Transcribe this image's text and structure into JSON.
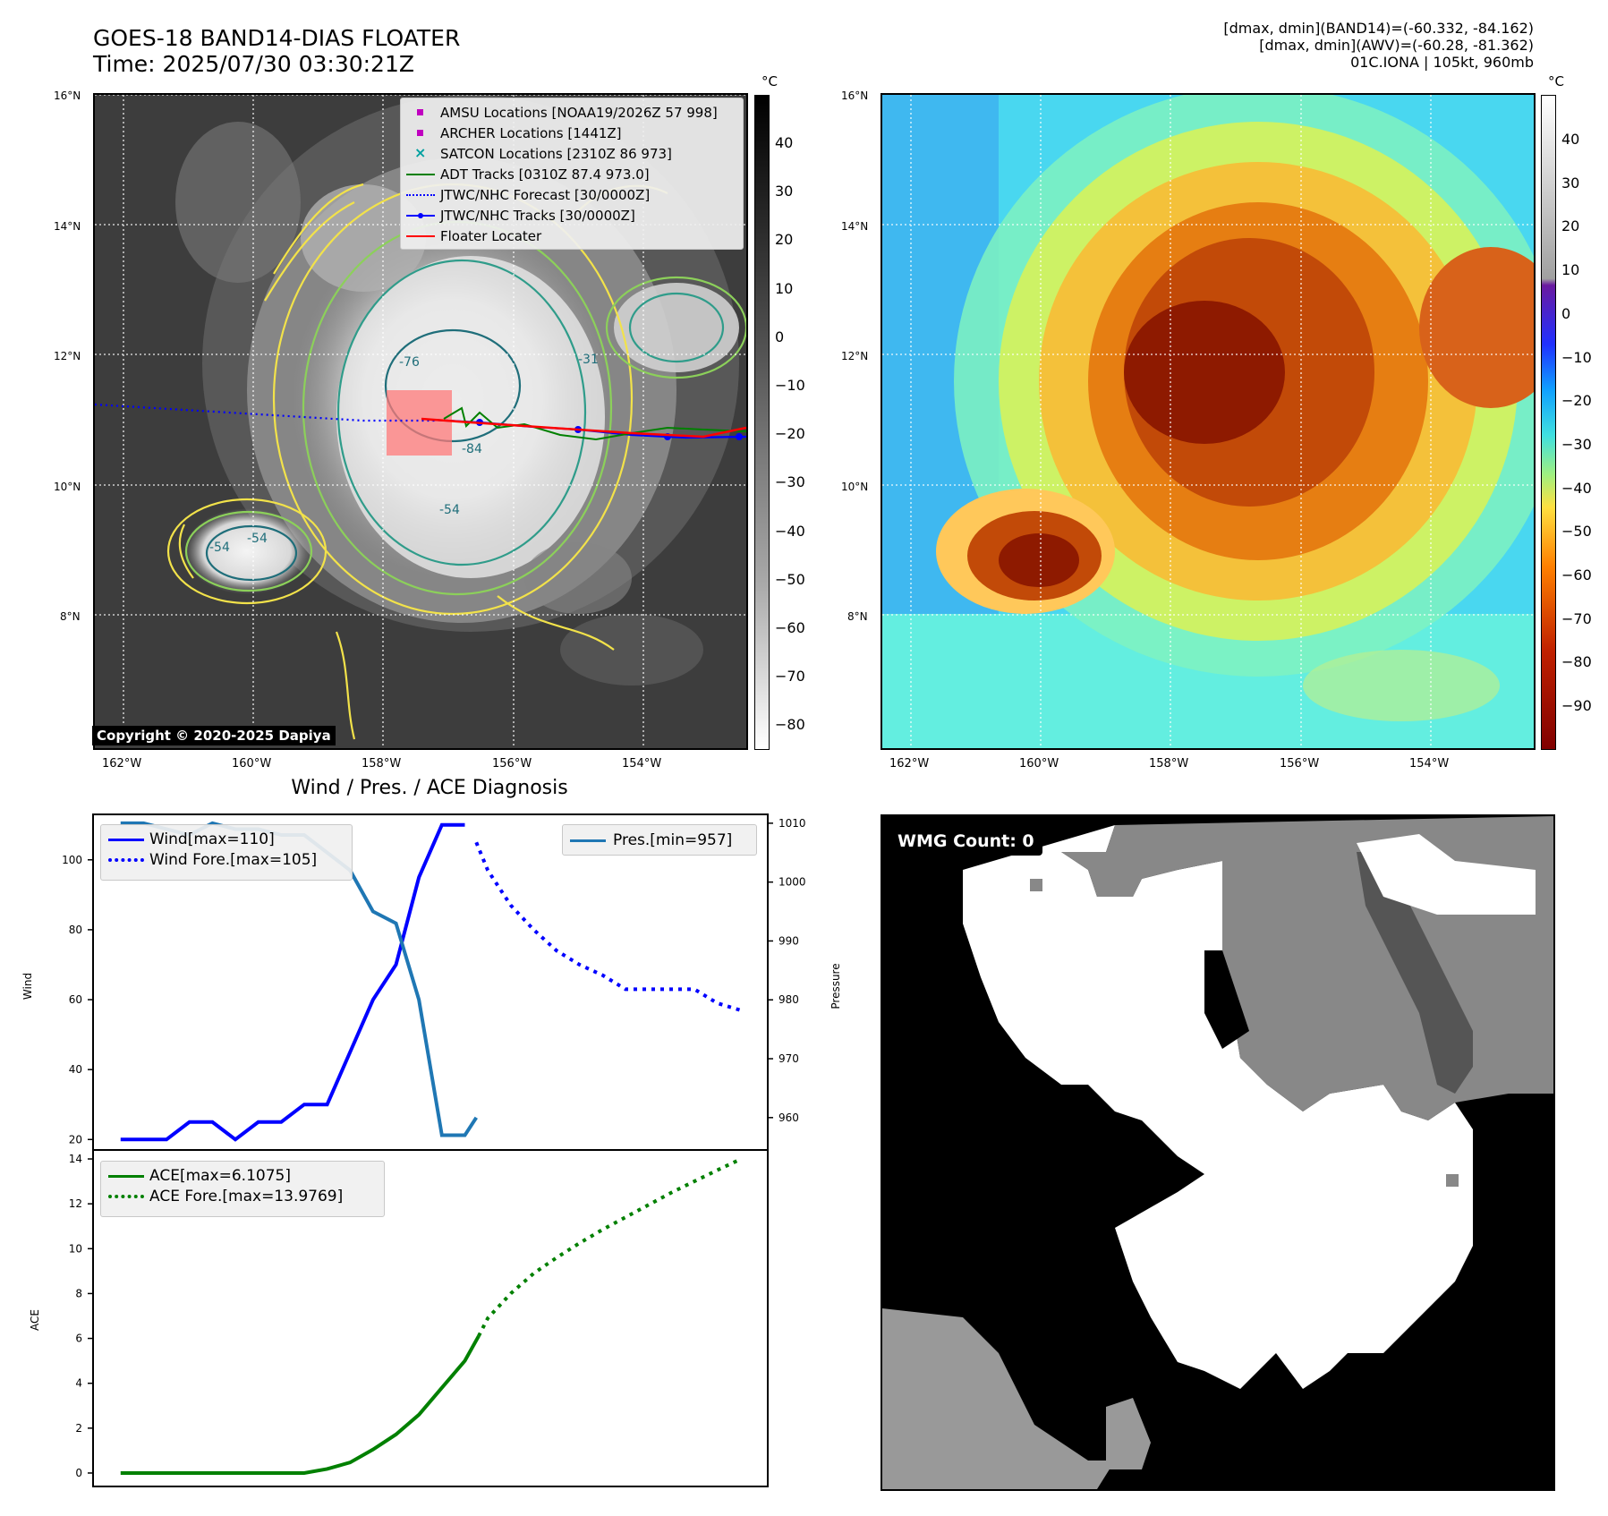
{
  "header": {
    "title_line1": "GOES-18 BAND14-DIAS FLOATER",
    "title_line2": "Time: 2025/07/30 03:30:21Z",
    "info_line1": "[dmax, dmin](BAND14)=(-60.332, -84.162)",
    "info_line2": "[dmax, dmin](AWV)=(-60.28, -81.362)",
    "info_line3": "01C.IONA | 105kt, 960mb"
  },
  "map": {
    "lat_labels": [
      "16°N",
      "14°N",
      "12°N",
      "10°N",
      "8°N"
    ],
    "lon_labels": [
      "162°W",
      "160°W",
      "158°W",
      "156°W",
      "154°W"
    ],
    "copyright": "Copyright © 2020-2025 Dapiya",
    "contour_labels": [
      "-54",
      "-54",
      "-54",
      "-31",
      "-76",
      "-84"
    ],
    "legend": [
      {
        "label": "AMSU Locations [NOAA19/2026Z 57 998]",
        "color": "#c000c0",
        "kind": "square"
      },
      {
        "label": "ARCHER Locations [1441Z]",
        "color": "#c000c0",
        "kind": "square"
      },
      {
        "label": "SATCON Locations [2310Z 86 973]",
        "color": "#00a0a0",
        "kind": "cross"
      },
      {
        "label": "ADT Tracks [0310Z 87.4 973.0]",
        "color": "#008000",
        "kind": "line"
      },
      {
        "label": "JTWC/NHC Forecast [30/0000Z]",
        "color": "#0000ff",
        "kind": "dotted"
      },
      {
        "label": "JTWC/NHC Tracks [30/0000Z]",
        "color": "#0000ff",
        "kind": "line-dot"
      },
      {
        "label": "Floater Locater",
        "color": "#ff0000",
        "kind": "line"
      }
    ]
  },
  "colorbars": {
    "unit": "°C",
    "gray_ticks": [
      "40",
      "30",
      "20",
      "10",
      "0",
      "−10",
      "−20",
      "−30",
      "−40",
      "−50",
      "−60",
      "−70",
      "−80"
    ],
    "color_ticks": [
      "40",
      "30",
      "20",
      "10",
      "0",
      "−10",
      "−20",
      "−30",
      "−40",
      "−50",
      "−60",
      "−70",
      "−80",
      "−90"
    ]
  },
  "wmg": {
    "badge": "WMG Count: 0"
  },
  "chart_data": [
    {
      "type": "line",
      "title": "Wind / Pres. / ACE Diagnosis",
      "ylabel": "Wind",
      "ylabel_right": "Pressure",
      "ylim": [
        17,
        113
      ],
      "ylim_right": [
        954.5,
        1011.5
      ],
      "yticks": [
        20,
        40,
        60,
        80,
        100
      ],
      "yticks_right": [
        960,
        970,
        980,
        990,
        1000,
        1010
      ],
      "series": [
        {
          "name": "Wind[max=110]",
          "axis": "left",
          "color": "#0000ff",
          "style": "solid",
          "x": [
            0,
            1,
            2,
            3,
            4,
            5,
            6,
            7,
            8,
            9,
            10,
            11,
            12,
            13,
            14,
            15
          ],
          "values": [
            20,
            20,
            20,
            25,
            25,
            20,
            25,
            25,
            30,
            30,
            45,
            60,
            70,
            95,
            110,
            110
          ]
        },
        {
          "name": "Wind Fore.[max=105]",
          "axis": "left",
          "color": "#0000ff",
          "style": "dotted",
          "x": [
            15.5,
            16,
            17,
            18,
            19,
            20,
            21,
            22,
            23,
            24,
            25,
            26,
            27
          ],
          "values": [
            105,
            97,
            87,
            80,
            74,
            70,
            67,
            63,
            63,
            63,
            63,
            59,
            57
          ]
        },
        {
          "name": "Pres.[min=957]",
          "axis": "right",
          "color": "#1f77b4",
          "style": "solid",
          "x": [
            0,
            1,
            2,
            3,
            4,
            5,
            6,
            7,
            8,
            9,
            10,
            11,
            12,
            13,
            14,
            15,
            15.5
          ],
          "values": [
            1010,
            1010,
            1009,
            1008,
            1010,
            1009,
            1009,
            1008,
            1008,
            1005,
            1002,
            995,
            993,
            980,
            957,
            957,
            960
          ]
        }
      ]
    },
    {
      "type": "line",
      "ylabel": "ACE",
      "ylim": [
        -0.6,
        14.4
      ],
      "yticks": [
        0,
        2,
        4,
        6,
        8,
        10,
        12,
        14
      ],
      "series": [
        {
          "name": "ACE[max=6.1075]",
          "color": "#008000",
          "style": "solid",
          "x": [
            0,
            2,
            4,
            6,
            8,
            9,
            10,
            11,
            12,
            13,
            14,
            15,
            15.6
          ],
          "values": [
            0,
            0,
            0,
            0,
            0,
            0.18,
            0.47,
            1.05,
            1.72,
            2.6,
            3.8,
            5.0,
            6.1
          ]
        },
        {
          "name": "ACE Fore.[max=13.9769]",
          "color": "#008000",
          "style": "dotted",
          "x": [
            15.6,
            16,
            17,
            18,
            19,
            20,
            21,
            22,
            23,
            24,
            25,
            26,
            27
          ],
          "values": [
            6.1,
            6.9,
            8.0,
            8.9,
            9.6,
            10.25,
            10.85,
            11.4,
            11.95,
            12.5,
            13.0,
            13.5,
            13.98
          ]
        }
      ]
    }
  ]
}
